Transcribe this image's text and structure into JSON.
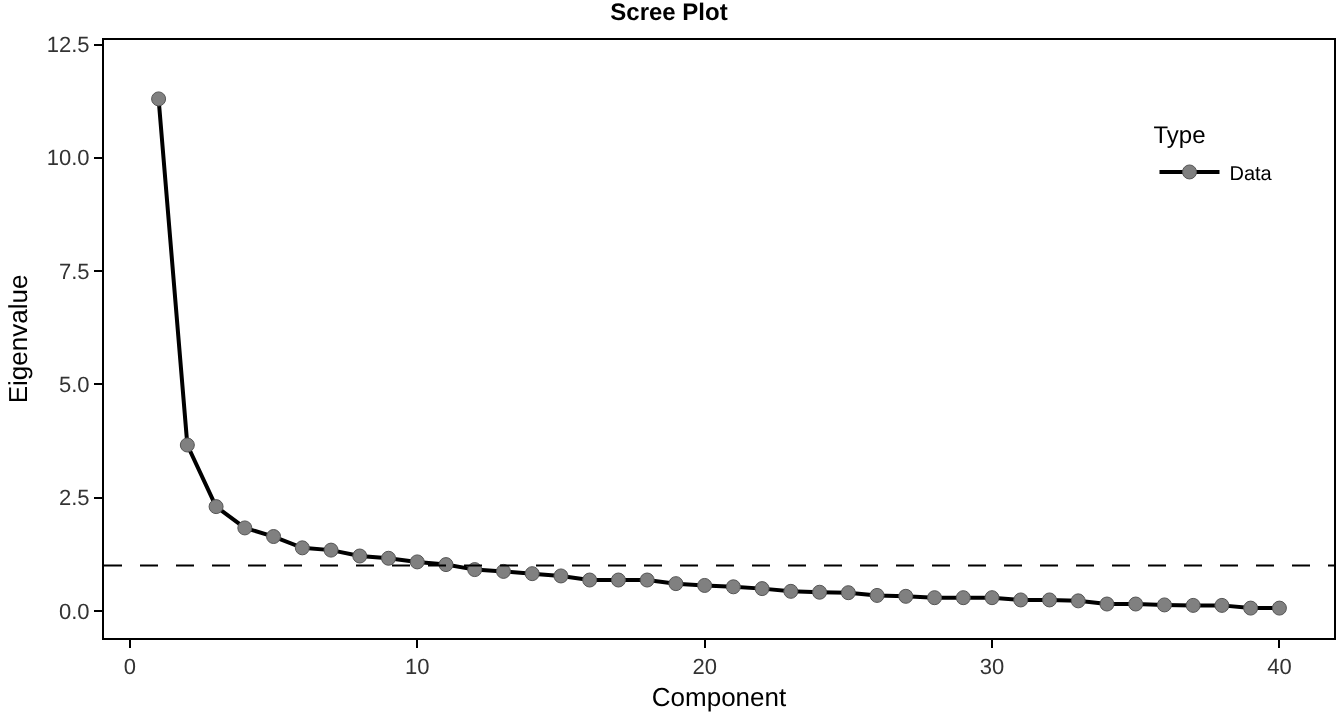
{
  "chart_data": {
    "type": "line",
    "title": "Scree Plot",
    "xlabel": "Component",
    "ylabel": "Eigenvalue",
    "legend_title": "Type",
    "x": [
      1,
      2,
      3,
      4,
      5,
      6,
      7,
      8,
      9,
      10,
      11,
      12,
      13,
      14,
      15,
      16,
      17,
      18,
      19,
      20,
      21,
      22,
      23,
      24,
      25,
      26,
      27,
      28,
      29,
      30,
      31,
      32,
      33,
      34,
      35,
      36,
      37,
      38,
      39,
      40
    ],
    "series": [
      {
        "name": "Data",
        "color": "#808080",
        "values": [
          11.3,
          3.66,
          2.3,
          1.83,
          1.64,
          1.39,
          1.34,
          1.21,
          1.16,
          1.08,
          1.02,
          0.91,
          0.87,
          0.82,
          0.77,
          0.68,
          0.68,
          0.68,
          0.6,
          0.56,
          0.53,
          0.49,
          0.43,
          0.41,
          0.4,
          0.34,
          0.32,
          0.29,
          0.29,
          0.29,
          0.24,
          0.24,
          0.22,
          0.15,
          0.15,
          0.13,
          0.12,
          0.12,
          0.06,
          0.06
        ]
      }
    ],
    "xlim": [
      -0.9,
      41.9
    ],
    "xticks": [
      0,
      10,
      20,
      30,
      40
    ],
    "ylim": [
      -0.6,
      12.6
    ],
    "yticks": [
      {
        "value": 0,
        "label": "0.0"
      },
      {
        "value": 2.5,
        "label": "2.5"
      },
      {
        "value": 5,
        "label": "5.0"
      },
      {
        "value": 7.5,
        "label": "7.5"
      },
      {
        "value": 10,
        "label": "10.0"
      },
      {
        "value": 12.5,
        "label": "12.5"
      }
    ],
    "ref_lines": [
      {
        "axis": "y",
        "value": 1,
        "line_style": "dashed",
        "color": "#000000"
      }
    ],
    "marker": "circle",
    "line_style": "solid",
    "grid": false,
    "legend": "top right"
  }
}
